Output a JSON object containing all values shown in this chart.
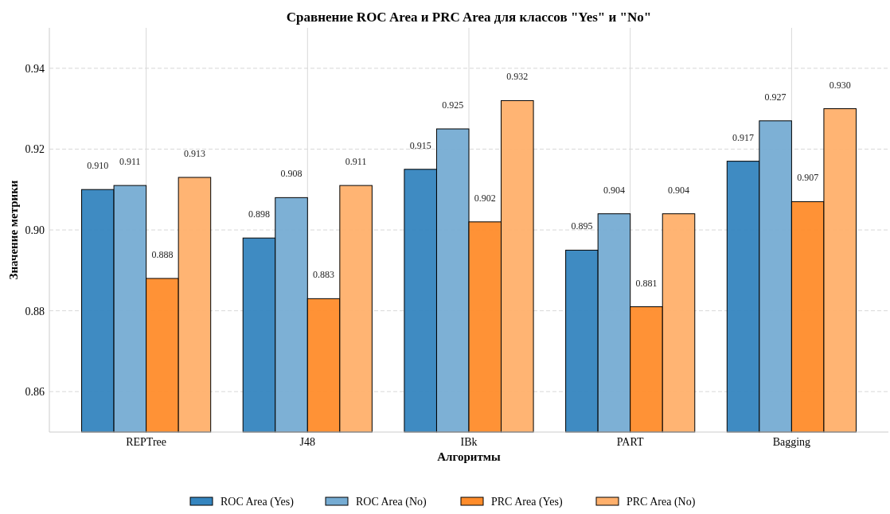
{
  "chart_data": {
    "type": "bar",
    "title": "Сравнение ROC Area и PRC Area для классов \"Yes\" и \"No\"",
    "xlabel": "Алгоритмы",
    "ylabel": "Значение метрики",
    "categories": [
      "REPTree",
      "J48",
      "IBk",
      "PART",
      "Bagging"
    ],
    "series": [
      {
        "name": "ROC Area (Yes)",
        "color": "#3585bf",
        "values": [
          0.91,
          0.898,
          0.915,
          0.895,
          0.917
        ],
        "value_labels": [
          "0.910",
          "0.898",
          "0.915",
          "0.895",
          "0.917"
        ]
      },
      {
        "name": "ROC Area (No)",
        "color": "#76acd3",
        "values": [
          0.911,
          0.908,
          0.925,
          0.904,
          0.927
        ],
        "value_labels": [
          "0.911",
          "0.908",
          "0.925",
          "0.904",
          "0.927"
        ]
      },
      {
        "name": "PRC Area (Yes)",
        "color": "#ff8c2b",
        "values": [
          0.888,
          0.883,
          0.902,
          0.881,
          0.907
        ],
        "value_labels": [
          "0.888",
          "0.883",
          "0.902",
          "0.881",
          "0.907"
        ]
      },
      {
        "name": "PRC Area (No)",
        "color": "#ffb06c",
        "values": [
          0.913,
          0.911,
          0.932,
          0.904,
          0.93
        ],
        "value_labels": [
          "0.913",
          "0.911",
          "0.932",
          "0.904",
          "0.930"
        ]
      }
    ],
    "ylim": [
      0.85,
      0.95
    ],
    "yticks": [
      {
        "value": 0.86,
        "label": "0.86"
      },
      {
        "value": 0.88,
        "label": "0.88"
      },
      {
        "value": 0.9,
        "label": "0.90"
      },
      {
        "value": 0.92,
        "label": "0.92"
      },
      {
        "value": 0.94,
        "label": "0.94"
      }
    ],
    "grid": true,
    "legend": "bottom"
  }
}
